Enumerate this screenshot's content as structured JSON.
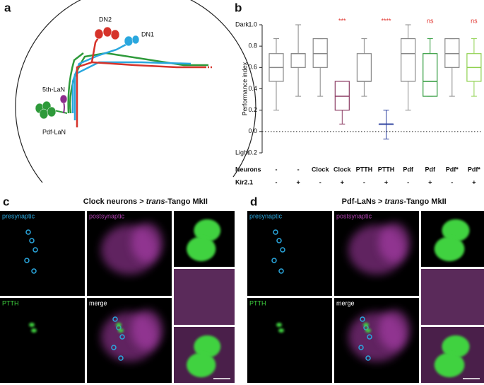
{
  "panel_a": {
    "letter": "a",
    "labels": [
      "DN2",
      "DN1",
      "5th-LaN",
      "Pdf-LaN"
    ]
  },
  "chart_data": {
    "letter": "b",
    "type": "box",
    "ylabel": "Performance index",
    "ylim": [
      -0.2,
      1.0
    ],
    "yticks": [
      {
        "value": 1,
        "label": "1.0"
      },
      0.8,
      0.6,
      0.4,
      0.2,
      {
        "value": 0,
        "label": "0.0"
      },
      -0.2
    ],
    "y_end_labels": [
      "Dark",
      "Light"
    ],
    "reference_line": 0,
    "boxes": [
      {
        "color": "#888888",
        "min": 0.2,
        "q1": 0.47,
        "median": 0.6,
        "q3": 0.73,
        "max": 0.87
      },
      {
        "color": "#888888",
        "min": 0.33,
        "q1": 0.6,
        "median": 0.73,
        "q3": 0.73,
        "max": 1.0
      },
      {
        "color": "#888888",
        "min": 0.33,
        "q1": 0.6,
        "median": 0.73,
        "q3": 0.87,
        "max": 0.87
      },
      {
        "color": "#8b3a62",
        "min": 0.07,
        "q1": 0.2,
        "median": 0.33,
        "q3": 0.47,
        "max": 0.47
      },
      {
        "color": "#888888",
        "min": 0.33,
        "q1": 0.47,
        "median": 0.47,
        "q3": 0.73,
        "max": 0.87
      },
      {
        "color": "#2b3f9e",
        "min": -0.07,
        "q1": 0.07,
        "median": 0.07,
        "q3": 0.07,
        "max": 0.2
      },
      {
        "color": "#888888",
        "min": 0.2,
        "q1": 0.47,
        "median": 0.73,
        "q3": 0.87,
        "max": 1.0
      },
      {
        "color": "#2e9a3a",
        "min": 0.33,
        "q1": 0.33,
        "median": 0.47,
        "q3": 0.73,
        "max": 0.87
      },
      {
        "color": "#888888",
        "min": 0.33,
        "q1": 0.6,
        "median": 0.73,
        "q3": 0.87,
        "max": 0.87
      },
      {
        "color": "#8fd14f",
        "min": 0.33,
        "q1": 0.47,
        "median": 0.6,
        "q3": 0.73,
        "max": 0.87
      }
    ],
    "significance": [
      null,
      null,
      null,
      "***",
      null,
      "****",
      null,
      "ns",
      null,
      "ns"
    ],
    "significance_color": "#e0302a",
    "rows": [
      {
        "name": "Neurons",
        "values": [
          "-",
          "-",
          "Clock",
          "Clock",
          "PTTH",
          "PTTH",
          "Pdf",
          "Pdf",
          "Pdf*",
          "Pdf*"
        ]
      },
      {
        "name": "Kir2.1",
        "values": [
          "-",
          "+",
          "-",
          "+",
          "-",
          "+",
          "-",
          "+",
          "-",
          "+"
        ]
      }
    ]
  },
  "panel_c": {
    "letter": "c",
    "title": [
      "Clock neurons > ",
      "trans",
      "-Tango MkII"
    ],
    "labels": [
      "presynaptic",
      "postsynaptic",
      "PTTH",
      "merge"
    ]
  },
  "panel_d": {
    "letter": "d",
    "title": [
      "Pdf-LaNs > ",
      "trans",
      "-Tango MkII"
    ],
    "labels": [
      "presynaptic",
      "postsynaptic",
      "PTTH",
      "merge"
    ]
  }
}
